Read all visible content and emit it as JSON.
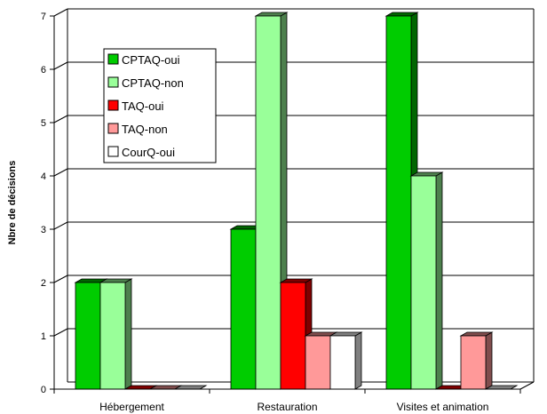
{
  "chart_data": {
    "type": "bar",
    "ylabel": "Nbre de décisions",
    "xlabel": "",
    "ylim": [
      0,
      7
    ],
    "yticks": [
      0,
      1,
      2,
      3,
      4,
      5,
      6,
      7
    ],
    "grid": true,
    "three_d": true,
    "legend_position": "upper-left",
    "categories": [
      "Hébergement",
      "Restauration",
      "Visites et animation"
    ],
    "series": [
      {
        "name": "CPTAQ-oui",
        "values": [
          2,
          3,
          7
        ],
        "color": "#00cc00",
        "side_color": "#006600"
      },
      {
        "name": "CPTAQ-non",
        "values": [
          2,
          7,
          4
        ],
        "color": "#99ff99",
        "side_color": "#4d804d"
      },
      {
        "name": "TAQ-oui",
        "values": [
          0,
          2,
          0
        ],
        "color": "#ff0000",
        "side_color": "#800000"
      },
      {
        "name": "TAQ-non",
        "values": [
          0,
          1,
          1
        ],
        "color": "#ff9999",
        "side_color": "#804d4d"
      },
      {
        "name": "CourQ-oui",
        "values": [
          0,
          1,
          0
        ],
        "color": "#ffffff",
        "side_color": "#808080"
      }
    ]
  }
}
